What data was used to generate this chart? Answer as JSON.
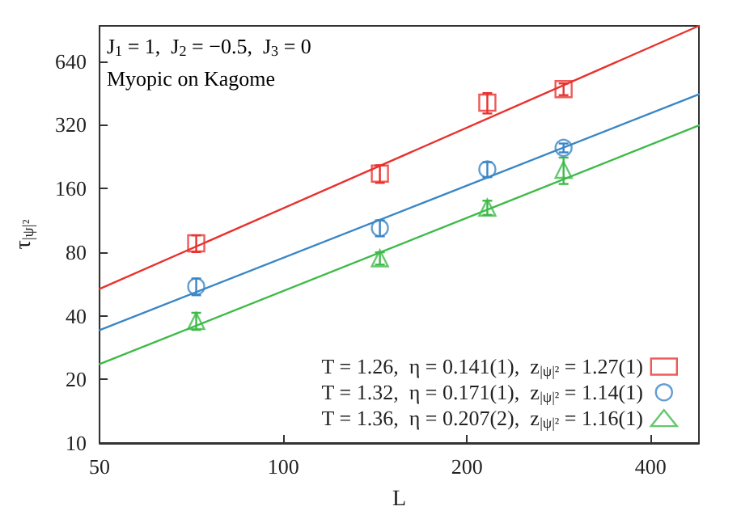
{
  "chart_data": {
    "type": "scatter",
    "xlabel": "L",
    "ylabel": "τ$_{|ψ|²}$",
    "annotations": [
      "J$_{1}$ = 1,  J$_{2}$ = −0.5,  J$_{3}$ = 0",
      "Myopic on Kagome"
    ],
    "log": "xy",
    "grid": false,
    "legend": "bottom right",
    "xlim": [
      50,
      480
    ],
    "xticks": [
      50,
      100,
      200,
      400
    ],
    "ylim": [
      10,
      940
    ],
    "yticks": [
      10,
      20,
      40,
      80,
      160,
      320,
      640
    ],
    "series": [
      {
        "name": "T = 1.26,  η = 0.141(1),  z$_{|ψ|²}$ = 1.27(1)",
        "color": "#e8322e",
        "marker": "square",
        "x": [
          72,
          144,
          216,
          288
        ],
        "values": [
          88,
          188,
          407,
          472
        ],
        "errors": [
          8,
          18,
          45,
          30
        ]
      },
      {
        "name": "T = 1.32,  η = 0.171(1),  z$_{|ψ|²}$ = 1.14(1)",
        "color": "#3a86c6",
        "marker": "circle",
        "x": [
          72,
          144,
          216,
          288
        ],
        "values": [
          55,
          104,
          197,
          249
        ],
        "errors": [
          5,
          9,
          16,
          12
        ]
      },
      {
        "name": "T = 1.36,  η = 0.207(2),  z$_{|ψ|²}$ = 1.16(1)",
        "color": "#3dba48",
        "marker": "triangle",
        "x": [
          72,
          144,
          216,
          288
        ],
        "values": [
          37.8,
          74.8,
          130,
          196
        ],
        "errors": [
          3.5,
          5,
          10,
          28
        ]
      },
      {
        "type": "line",
        "color": "#e8322e",
        "x": [
          50,
          480
        ],
        "values": [
          53.6,
          940
        ]
      },
      {
        "type": "line",
        "color": "#3a86c6",
        "x": [
          50,
          480
        ],
        "values": [
          34.2,
          446
        ]
      },
      {
        "type": "line",
        "color": "#3dba48",
        "x": [
          50,
          480
        ],
        "values": [
          23.6,
          318
        ]
      }
    ]
  }
}
